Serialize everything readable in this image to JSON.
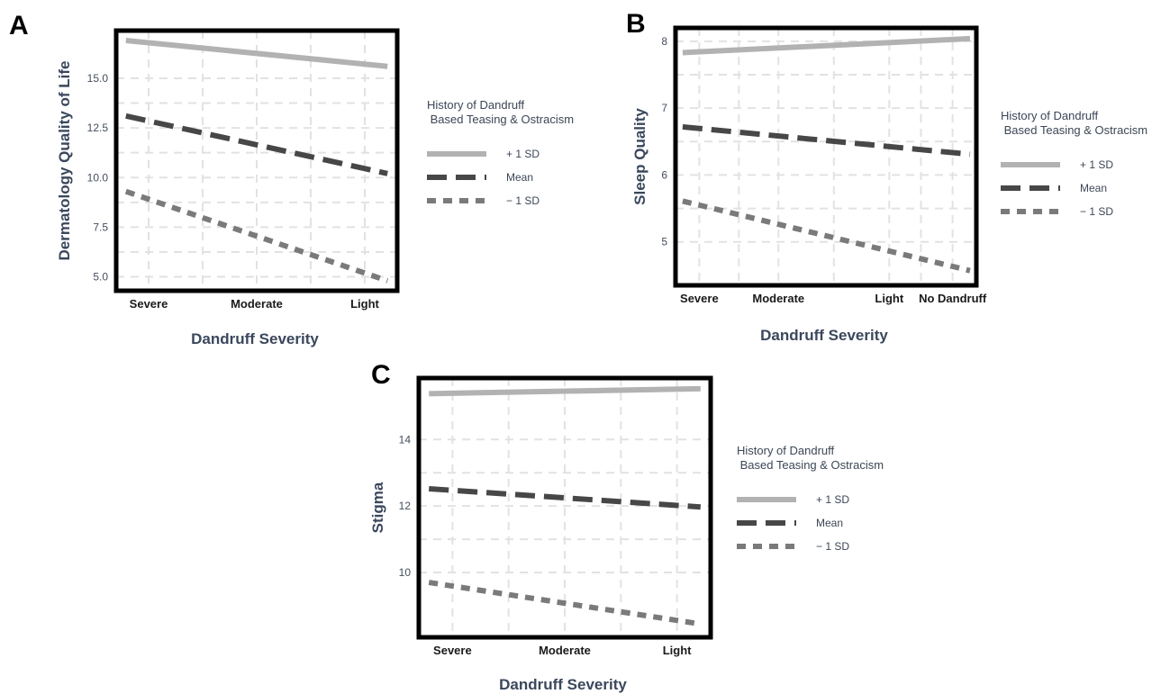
{
  "figure": {
    "label_color": "#3a475c",
    "legend": {
      "title_line1": "History of Dandruff",
      "title_line2": " Based Teasing & Ostracism",
      "entries": [
        {
          "label": "+ 1 SD",
          "color": "#b2b2b2",
          "dash": "solid"
        },
        {
          "label": "Mean",
          "color": "#474747",
          "dash": "long-dash"
        },
        {
          "label": "− 1 SD",
          "color": "#7a7a7a",
          "dash": "short-dash"
        }
      ]
    }
  },
  "chart_data": [
    {
      "panel": "A",
      "type": "line",
      "xlabel": "Dandruff Severity",
      "ylabel": "Dermatology Quality of Life",
      "categories": [
        "Severe",
        "Moderate",
        "Light"
      ],
      "x_ticks": [
        1,
        2,
        3
      ],
      "xlim": [
        0.7,
        3.3
      ],
      "ylim": [
        4.3,
        17.4
      ],
      "y_ticks": [
        5.0,
        7.5,
        10.0,
        12.5,
        15.0
      ],
      "y_tick_labels": [
        "5.0",
        "7.5",
        "10.0",
        "12.5",
        "15.0"
      ],
      "grid": true,
      "legend_position": "right",
      "series": [
        {
          "name": "+ 1 SD",
          "x": [
            0.79,
            3.21
          ],
          "values": [
            16.9,
            15.6
          ]
        },
        {
          "name": "Mean",
          "x": [
            0.79,
            3.21
          ],
          "values": [
            13.1,
            10.2
          ]
        },
        {
          "name": "− 1 SD",
          "x": [
            0.79,
            3.21
          ],
          "values": [
            9.3,
            4.8
          ]
        }
      ]
    },
    {
      "panel": "B",
      "type": "line",
      "xlabel": "Dandruff Severity",
      "ylabel": "Sleep Quality",
      "categories": [
        "Severe",
        "Moderate",
        "Light",
        "No Dandruff"
      ],
      "x_ticks": [
        1,
        2,
        3.4,
        4.2
      ],
      "xlim": [
        0.7,
        4.5
      ],
      "ylim": [
        4.35,
        8.2
      ],
      "y_ticks": [
        5,
        6,
        7,
        8
      ],
      "y_tick_labels": [
        "5",
        "6",
        "7",
        "8"
      ],
      "grid": true,
      "legend_position": "right",
      "series": [
        {
          "name": "+ 1 SD",
          "x": [
            0.79,
            4.42
          ],
          "values": [
            7.83,
            8.04
          ]
        },
        {
          "name": "Mean",
          "x": [
            0.79,
            4.42
          ],
          "values": [
            6.72,
            6.31
          ]
        },
        {
          "name": "− 1 SD",
          "x": [
            0.79,
            4.42
          ],
          "values": [
            5.61,
            4.57
          ]
        }
      ]
    },
    {
      "panel": "C",
      "type": "line",
      "xlabel": "Dandruff Severity",
      "ylabel": "Stigma",
      "categories": [
        "Severe",
        "Moderate",
        "Light"
      ],
      "x_ticks": [
        1,
        2,
        3
      ],
      "xlim": [
        0.7,
        3.3
      ],
      "ylim": [
        8.05,
        15.85
      ],
      "y_ticks": [
        10,
        12,
        14
      ],
      "y_tick_labels": [
        "10",
        "12",
        "14"
      ],
      "grid": true,
      "legend_position": "right",
      "series": [
        {
          "name": "+ 1 SD",
          "x": [
            0.79,
            3.21
          ],
          "values": [
            15.38,
            15.53
          ]
        },
        {
          "name": "Mean",
          "x": [
            0.79,
            3.21
          ],
          "values": [
            12.52,
            11.97
          ]
        },
        {
          "name": "− 1 SD",
          "x": [
            0.79,
            3.21
          ],
          "values": [
            9.7,
            8.45
          ]
        }
      ]
    }
  ]
}
